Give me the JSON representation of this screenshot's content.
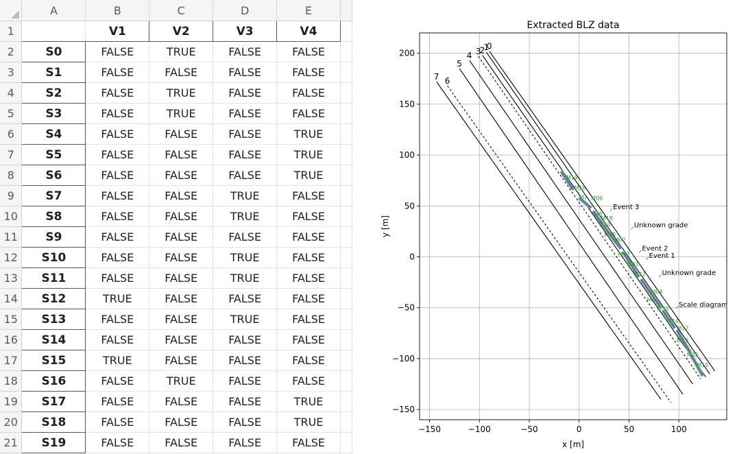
{
  "sheet": {
    "column_headers": [
      "A",
      "B",
      "C",
      "D",
      "E"
    ],
    "table_header": [
      "V1",
      "V2",
      "V3",
      "V4"
    ],
    "rows": [
      {
        "row": "2",
        "label": "S0",
        "values": [
          "FALSE",
          "TRUE",
          "FALSE",
          "FALSE"
        ]
      },
      {
        "row": "3",
        "label": "S1",
        "values": [
          "FALSE",
          "FALSE",
          "FALSE",
          "FALSE"
        ]
      },
      {
        "row": "4",
        "label": "S2",
        "values": [
          "FALSE",
          "TRUE",
          "FALSE",
          "FALSE"
        ]
      },
      {
        "row": "5",
        "label": "S3",
        "values": [
          "FALSE",
          "TRUE",
          "FALSE",
          "FALSE"
        ]
      },
      {
        "row": "6",
        "label": "S4",
        "values": [
          "FALSE",
          "FALSE",
          "FALSE",
          "TRUE"
        ]
      },
      {
        "row": "7",
        "label": "S5",
        "values": [
          "FALSE",
          "FALSE",
          "FALSE",
          "TRUE"
        ]
      },
      {
        "row": "8",
        "label": "S6",
        "values": [
          "FALSE",
          "FALSE",
          "FALSE",
          "TRUE"
        ]
      },
      {
        "row": "9",
        "label": "S7",
        "values": [
          "FALSE",
          "FALSE",
          "TRUE",
          "FALSE"
        ]
      },
      {
        "row": "10",
        "label": "S8",
        "values": [
          "FALSE",
          "FALSE",
          "TRUE",
          "FALSE"
        ]
      },
      {
        "row": "11",
        "label": "S9",
        "values": [
          "FALSE",
          "FALSE",
          "FALSE",
          "FALSE"
        ]
      },
      {
        "row": "12",
        "label": "S10",
        "values": [
          "FALSE",
          "FALSE",
          "TRUE",
          "FALSE"
        ]
      },
      {
        "row": "13",
        "label": "S11",
        "values": [
          "FALSE",
          "FALSE",
          "TRUE",
          "FALSE"
        ]
      },
      {
        "row": "14",
        "label": "S12",
        "values": [
          "TRUE",
          "FALSE",
          "FALSE",
          "FALSE"
        ]
      },
      {
        "row": "15",
        "label": "S13",
        "values": [
          "FALSE",
          "FALSE",
          "TRUE",
          "FALSE"
        ]
      },
      {
        "row": "16",
        "label": "S14",
        "values": [
          "FALSE",
          "FALSE",
          "FALSE",
          "FALSE"
        ]
      },
      {
        "row": "17",
        "label": "S15",
        "values": [
          "TRUE",
          "FALSE",
          "FALSE",
          "FALSE"
        ]
      },
      {
        "row": "18",
        "label": "S16",
        "values": [
          "FALSE",
          "TRUE",
          "FALSE",
          "FALSE"
        ]
      },
      {
        "row": "19",
        "label": "S17",
        "values": [
          "FALSE",
          "FALSE",
          "FALSE",
          "TRUE"
        ]
      },
      {
        "row": "20",
        "label": "S18",
        "values": [
          "FALSE",
          "FALSE",
          "FALSE",
          "TRUE"
        ]
      },
      {
        "row": "21",
        "label": "S19",
        "values": [
          "FALSE",
          "FALSE",
          "FALSE",
          "FALSE"
        ]
      }
    ]
  },
  "chart_data": {
    "type": "line",
    "title": "Extracted BLZ data",
    "xlabel": "x [m]",
    "ylabel": "y [m]",
    "xlim": [
      -160,
      148
    ],
    "ylim": [
      -160,
      220
    ],
    "xticks": [
      -150,
      -100,
      -50,
      0,
      50,
      100
    ],
    "yticks": [
      -150,
      -100,
      -50,
      0,
      50,
      100,
      150,
      200
    ],
    "grid": true,
    "tracks": [
      {
        "label": "7",
        "style": "solid",
        "from": [
          -143,
          172
        ],
        "to": [
          82,
          -140
        ]
      },
      {
        "label": "6",
        "style": "dashed",
        "from": [
          -132,
          168
        ],
        "to": [
          92,
          -143
        ]
      },
      {
        "label": "5",
        "style": "solid",
        "from": [
          -120,
          185
        ],
        "to": [
          104,
          -135
        ]
      },
      {
        "label": "4",
        "style": "solid",
        "from": [
          -110,
          193
        ],
        "to": [
          114,
          -125
        ]
      },
      {
        "label": "3",
        "style": "dashed",
        "from": [
          -101,
          197
        ],
        "to": [
          122,
          -120
        ]
      },
      {
        "label": "2",
        "style": "solid",
        "from": [
          -97,
          198
        ],
        "to": [
          127,
          -118
        ]
      },
      {
        "label": "1",
        "style": "solid",
        "from": [
          -93,
          201
        ],
        "to": [
          131,
          -115
        ]
      },
      {
        "label": "0",
        "style": "solid",
        "from": [
          -90,
          202
        ],
        "to": [
          136,
          -112
        ]
      }
    ],
    "annotations": [
      {
        "text": "Event 3",
        "x": 34,
        "y": 47
      },
      {
        "text": "Unknown grade",
        "x": 55,
        "y": 29
      },
      {
        "text": "Event 2",
        "x": 63,
        "y": 6
      },
      {
        "text": "Event 1",
        "x": 70,
        "y": -1
      },
      {
        "text": "Unknown grade",
        "x": 83,
        "y": -18
      },
      {
        "text": "Scale diagram t",
        "x": 100,
        "y": -49
      }
    ],
    "segments": [
      {
        "from": [
          -18,
          84
        ],
        "to": [
          -6,
          66
        ]
      },
      {
        "from": [
          0,
          58
        ],
        "to": [
          12,
          48
        ]
      },
      {
        "from": [
          14,
          45
        ],
        "to": [
          30,
          23
        ]
      },
      {
        "from": [
          30,
          23
        ],
        "to": [
          42,
          8
        ]
      },
      {
        "from": [
          44,
          5
        ],
        "to": [
          60,
          -20
        ]
      },
      {
        "from": [
          62,
          -22
        ],
        "to": [
          82,
          -50
        ]
      },
      {
        "from": [
          84,
          -53
        ],
        "to": [
          96,
          -70
        ]
      },
      {
        "from": [
          98,
          -72
        ],
        "to": [
          112,
          -95
        ]
      },
      {
        "from": [
          112,
          -96
        ],
        "to": [
          124,
          -117
        ]
      }
    ],
    "labels": [
      {
        "text": "M19",
        "x": -13,
        "y": 76
      },
      {
        "text": "M16",
        "x": -5,
        "y": 66
      },
      {
        "text": "M1",
        "x": 0,
        "y": 57
      },
      {
        "text": "M06",
        "x": 12,
        "y": 56
      },
      {
        "text": "M8",
        "x": 15,
        "y": 40
      },
      {
        "text": "M18",
        "x": 22,
        "y": 36
      },
      {
        "text": "M10",
        "x": 20,
        "y": 30
      },
      {
        "text": "M05",
        "x": 25,
        "y": 20
      },
      {
        "text": "M02",
        "x": 35,
        "y": 15
      },
      {
        "text": "M07",
        "x": 39,
        "y": 1
      },
      {
        "text": "M01",
        "x": 48,
        "y": -9
      },
      {
        "text": "M12",
        "x": 55,
        "y": -19
      },
      {
        "text": "M04",
        "x": 72,
        "y": -36
      },
      {
        "text": "M3",
        "x": 68,
        "y": -44
      },
      {
        "text": "M03",
        "x": 78,
        "y": -53
      },
      {
        "text": "M14",
        "x": 88,
        "y": -65
      },
      {
        "text": "M17",
        "x": 98,
        "y": -72
      },
      {
        "text": "M13",
        "x": 98,
        "y": -84
      },
      {
        "text": "M02",
        "x": 108,
        "y": -98
      },
      {
        "text": "M15",
        "x": 118,
        "y": -108
      }
    ],
    "colors": {
      "tracks": "#000000",
      "labels": "#2ca02c",
      "segments": "#7a9cb0",
      "grid": "#b0b0b0"
    }
  }
}
